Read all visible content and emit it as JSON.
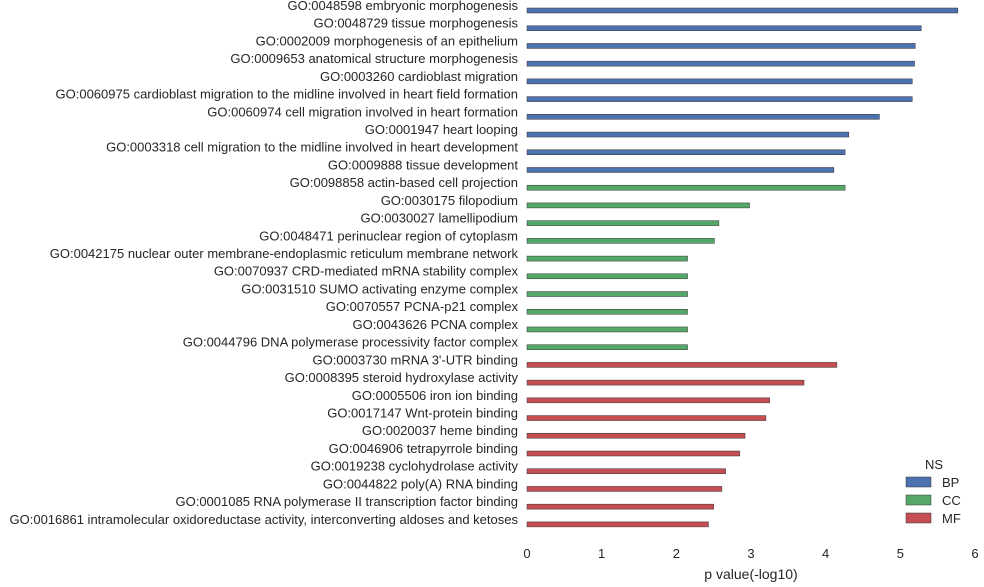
{
  "chart_data": {
    "type": "bar",
    "orientation": "horizontal",
    "xlabel": "p value(-log10)",
    "ylabel": "",
    "xlim": [
      0,
      6
    ],
    "xticks": [
      0,
      1,
      2,
      3,
      4,
      5,
      6
    ],
    "grid": false,
    "legend": {
      "title": "NS",
      "placement": "bottom-right",
      "entries": [
        "BP",
        "CC",
        "MF"
      ]
    },
    "colors": {
      "BP": "#4c72b0",
      "CC": "#55a868",
      "MF": "#c44e52"
    },
    "bars": [
      {
        "category": "GO:0048598 embryonic morphogenesis",
        "ns": "BP",
        "value": 5.77
      },
      {
        "category": "GO:0048729 tissue morphogenesis",
        "ns": "BP",
        "value": 5.28
      },
      {
        "category": "GO:0002009 morphogenesis of an epithelium",
        "ns": "BP",
        "value": 5.2
      },
      {
        "category": "GO:0009653 anatomical structure morphogenesis",
        "ns": "BP",
        "value": 5.19
      },
      {
        "category": "GO:0003260 cardioblast migration",
        "ns": "BP",
        "value": 5.16
      },
      {
        "category": "GO:0060975 cardioblast migration to the midline involved in heart field formation",
        "ns": "BP",
        "value": 5.16
      },
      {
        "category": "GO:0060974 cell migration involved in heart formation",
        "ns": "BP",
        "value": 4.72
      },
      {
        "category": "GO:0001947 heart looping",
        "ns": "BP",
        "value": 4.31
      },
      {
        "category": "GO:0003318 cell migration to the midline involved in heart development",
        "ns": "BP",
        "value": 4.26
      },
      {
        "category": "GO:0009888 tissue development",
        "ns": "BP",
        "value": 4.11
      },
      {
        "category": "GO:0098858 actin-based cell projection",
        "ns": "CC",
        "value": 4.26
      },
      {
        "category": "GO:0030175 filopodium",
        "ns": "CC",
        "value": 2.98
      },
      {
        "category": "GO:0030027 lamellipodium",
        "ns": "CC",
        "value": 2.57
      },
      {
        "category": "GO:0048471 perinuclear region of cytoplasm",
        "ns": "CC",
        "value": 2.51
      },
      {
        "category": "GO:0042175 nuclear outer membrane-endoplasmic reticulum membrane network",
        "ns": "CC",
        "value": 2.15
      },
      {
        "category": "GO:0070937 CRD-mediated mRNA stability complex",
        "ns": "CC",
        "value": 2.15
      },
      {
        "category": "GO:0031510 SUMO activating enzyme complex",
        "ns": "CC",
        "value": 2.15
      },
      {
        "category": "GO:0070557 PCNA-p21 complex",
        "ns": "CC",
        "value": 2.15
      },
      {
        "category": "GO:0043626 PCNA complex",
        "ns": "CC",
        "value": 2.15
      },
      {
        "category": "GO:0044796 DNA polymerase processivity factor complex",
        "ns": "CC",
        "value": 2.15
      },
      {
        "category": "GO:0003730 mRNA 3'-UTR binding",
        "ns": "MF",
        "value": 4.15
      },
      {
        "category": "GO:0008395 steroid hydroxylase activity",
        "ns": "MF",
        "value": 3.71
      },
      {
        "category": "GO:0005506 iron ion binding",
        "ns": "MF",
        "value": 3.25
      },
      {
        "category": "GO:0017147 Wnt-protein binding",
        "ns": "MF",
        "value": 3.2
      },
      {
        "category": "GO:0020037 heme binding",
        "ns": "MF",
        "value": 2.92
      },
      {
        "category": "GO:0046906 tetrapyrrole binding",
        "ns": "MF",
        "value": 2.85
      },
      {
        "category": "GO:0019238 cyclohydrolase activity",
        "ns": "MF",
        "value": 2.66
      },
      {
        "category": "GO:0044822 poly(A) RNA binding",
        "ns": "MF",
        "value": 2.61
      },
      {
        "category": "GO:0001085 RNA polymerase II transcription factor binding",
        "ns": "MF",
        "value": 2.5
      },
      {
        "category": "GO:0016861 intramolecular oxidoreductase activity, interconverting aldoses and ketoses",
        "ns": "MF",
        "value": 2.43
      }
    ]
  }
}
